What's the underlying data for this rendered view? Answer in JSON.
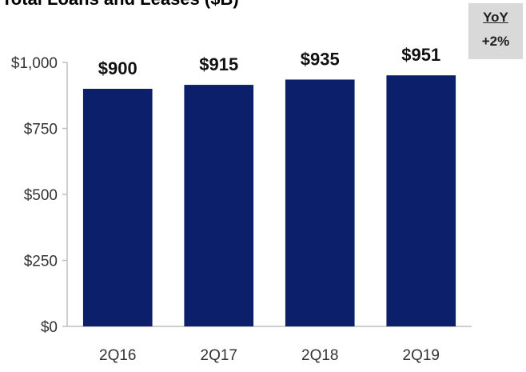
{
  "chart_data": {
    "type": "bar",
    "title": "Total Loans and Leases ($B)",
    "categories": [
      "2Q16",
      "2Q17",
      "2Q18",
      "2Q19"
    ],
    "values": [
      900,
      915,
      935,
      951
    ],
    "data_labels": [
      "$900",
      "$915",
      "$935",
      "$951"
    ],
    "yticks": [
      0,
      250,
      500,
      750,
      1000
    ],
    "ytick_labels": [
      "$0",
      "$250",
      "$500",
      "$750",
      "$1,000"
    ],
    "ylim": [
      0,
      1000
    ],
    "grid": false,
    "bar_color": "#0b1f6b"
  },
  "yoy": {
    "label": "YoY",
    "value": "+2%"
  }
}
